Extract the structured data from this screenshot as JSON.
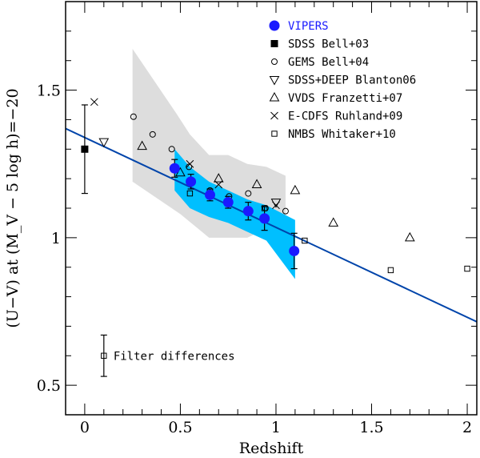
{
  "chart_data": {
    "type": "scatter",
    "xlabel": "Redshift",
    "ylabel": "(U−V) at (M_V − 5 log h)=−20",
    "xlim": [
      -0.1,
      2.05
    ],
    "ylim": [
      0.4,
      1.8
    ],
    "x_ticks": [
      0,
      0.5,
      1,
      1.5,
      2
    ],
    "x_tick_labels": [
      "0",
      "0.5",
      "1",
      "1.5",
      "2"
    ],
    "y_ticks": [
      0.5,
      1,
      1.5
    ],
    "y_tick_labels": [
      "0.5",
      "1",
      "1.5"
    ],
    "grid": false,
    "legend_position": "top-right",
    "colors": {
      "vipers": "#1a1aff",
      "vipers_label": "#1a1aff",
      "band_inner": "#00bfff",
      "band_outer": "#dddddd",
      "fit_line": "#0044aa",
      "other": "#000000"
    },
    "fit_line": {
      "x": [
        -0.1,
        2.05
      ],
      "y": [
        1.37,
        0.715
      ]
    },
    "outer_band": {
      "upper": [
        [
          0.25,
          1.64
        ],
        [
          0.48,
          1.42
        ],
        [
          0.55,
          1.35
        ],
        [
          0.65,
          1.28
        ],
        [
          0.75,
          1.28
        ],
        [
          0.85,
          1.25
        ],
        [
          0.95,
          1.24
        ],
        [
          1.05,
          1.21
        ]
      ],
      "lower": [
        [
          1.05,
          1.03
        ],
        [
          0.95,
          1.03
        ],
        [
          0.85,
          1.0
        ],
        [
          0.75,
          1.0
        ],
        [
          0.65,
          1.0
        ],
        [
          0.5,
          1.08
        ],
        [
          0.25,
          1.19
        ]
      ]
    },
    "inner_band": {
      "upper": [
        [
          0.47,
          1.3
        ],
        [
          0.55,
          1.24
        ],
        [
          0.65,
          1.19
        ],
        [
          0.75,
          1.16
        ],
        [
          0.85,
          1.13
        ],
        [
          0.95,
          1.11
        ],
        [
          1.1,
          1.06
        ]
      ],
      "lower": [
        [
          1.1,
          0.86
        ],
        [
          0.95,
          0.99
        ],
        [
          0.85,
          1.02
        ],
        [
          0.75,
          1.05
        ],
        [
          0.65,
          1.07
        ],
        [
          0.55,
          1.1
        ],
        [
          0.47,
          1.16
        ]
      ]
    },
    "series": [
      {
        "name": "VIPERS",
        "marker": "filled-circle",
        "x": [
          0.47,
          0.555,
          0.655,
          0.75,
          0.855,
          0.94,
          1.095
        ],
        "y": [
          1.235,
          1.19,
          1.145,
          1.12,
          1.09,
          1.065,
          0.955
        ],
        "yerr": [
          0.03,
          0.025,
          0.02,
          0.02,
          0.03,
          0.04,
          0.06
        ]
      },
      {
        "name": "SDSS Bell+03",
        "marker": "filled-square",
        "x": [
          0.0
        ],
        "y": [
          1.3
        ],
        "yerr": [
          0.15
        ]
      },
      {
        "name": "GEMS Bell+04",
        "marker": "open-circle",
        "x": [
          0.255,
          0.355,
          0.455,
          0.545,
          0.655,
          0.755,
          0.855,
          0.945,
          1.05
        ],
        "y": [
          1.41,
          1.35,
          1.3,
          1.24,
          1.16,
          1.14,
          1.15,
          1.1,
          1.09
        ]
      },
      {
        "name": "SDSS+DEEP Blanton06",
        "marker": "open-triangle-down",
        "x": [
          0.1,
          1.0
        ],
        "y": [
          1.325,
          1.12
        ]
      },
      {
        "name": "VVDS Franzetti+07",
        "marker": "open-triangle-up",
        "x": [
          0.3,
          0.5,
          0.7,
          0.9,
          1.1,
          1.3,
          1.7
        ],
        "y": [
          1.31,
          1.22,
          1.2,
          1.18,
          1.16,
          1.05,
          1.0
        ]
      },
      {
        "name": "E-CDFS Ruhland+09",
        "marker": "cross",
        "x": [
          0.05,
          0.55,
          0.7,
          1.0
        ],
        "y": [
          1.46,
          1.25,
          1.18,
          1.11
        ]
      },
      {
        "name": "NMBS Whitaker+10",
        "marker": "open-square",
        "x": [
          0.55,
          0.94,
          1.15,
          1.6,
          2.0
        ],
        "y": [
          1.15,
          1.1,
          0.99,
          0.89,
          0.895
        ]
      }
    ],
    "annotation": {
      "text": "Filter differences",
      "x": 0.1,
      "y": 0.6,
      "yerr": 0.07
    }
  }
}
